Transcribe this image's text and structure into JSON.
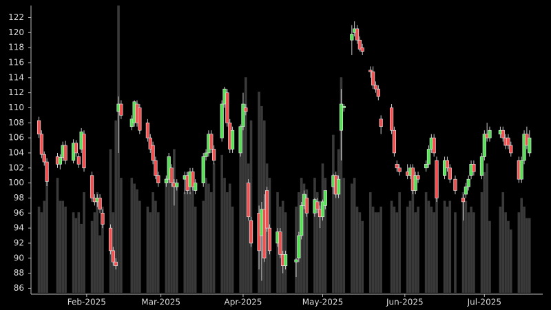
{
  "chart_data": {
    "type": "candlestick",
    "x": [
      14,
      15,
      16,
      17,
      21,
      22,
      23,
      24,
      27,
      28,
      29,
      30,
      31,
      34,
      35,
      36,
      37,
      38,
      41,
      42,
      43,
      44,
      45,
      49,
      50,
      51,
      52,
      55,
      56,
      57,
      58,
      59,
      62,
      63,
      64,
      65,
      66,
      69,
      70,
      71,
      72,
      73,
      76,
      77,
      78,
      79,
      80,
      83,
      84,
      85,
      86,
      87,
      90,
      91,
      92,
      93,
      94,
      97,
      98,
      99,
      100,
      101,
      104,
      105,
      106,
      107,
      111,
      112,
      113,
      114,
      115,
      118,
      119,
      120,
      121,
      122,
      125,
      126,
      127,
      128,
      129,
      132,
      133,
      134,
      135,
      136,
      139,
      140,
      141,
      142,
      143,
      147,
      148,
      149,
      150,
      153,
      154,
      155,
      156,
      157,
      160,
      161,
      162,
      163,
      164,
      167,
      168,
      169,
      171,
      174,
      175,
      176,
      177,
      178,
      181,
      182,
      183,
      184,
      188,
      189,
      190,
      191,
      192,
      195,
      196,
      197,
      198,
      199
    ],
    "open": [
      108.3,
      106.5,
      103.8,
      102.8,
      103.5,
      102.5,
      103.4,
      105,
      103,
      105.3,
      103.5,
      104.5,
      106.5,
      101,
      98,
      97.5,
      98,
      96,
      94,
      91,
      89.5,
      109.5,
      110.5,
      107.5,
      108,
      110.5,
      110,
      108,
      106,
      105,
      103,
      101,
      100,
      100.5,
      102,
      100,
      99.5,
      100.5,
      101,
      99.5,
      101.5,
      99,
      100,
      103.5,
      104,
      106.5,
      104.5,
      106,
      110.5,
      112,
      108,
      104.5,
      104,
      107.5,
      110,
      100,
      95,
      96,
      93,
      96.5,
      99,
      94,
      92,
      93.5,
      90.5,
      89,
      89.5,
      90,
      93,
      97,
      98,
      96,
      97.5,
      96.5,
      95.5,
      97,
      99.5,
      101,
      98.5,
      107,
      110,
      119,
      120,
      120.5,
      119,
      118,
      115,
      114.8,
      113,
      112.5,
      108.5,
      110,
      107,
      102.5,
      102,
      101.5,
      101,
      102,
      99,
      101,
      102,
      102.5,
      104.5,
      106,
      103,
      101,
      103,
      102,
      100.5,
      98,
      98.5,
      99.5,
      101,
      102.5,
      101,
      103.5,
      106.5,
      106,
      106.5,
      107,
      106,
      106,
      105,
      103,
      100.5,
      103,
      106.5,
      104
    ],
    "high": [
      108.8,
      107,
      104.2,
      103.3,
      104,
      103.8,
      105.5,
      105.6,
      105.8,
      105.7,
      104,
      107.3,
      107,
      101.5,
      98.5,
      98.5,
      98.5,
      96.5,
      94.5,
      91.5,
      90,
      111.5,
      111,
      109,
      111,
      111,
      110.5,
      108.5,
      106.5,
      105.5,
      103.5,
      101.5,
      101,
      104,
      102.5,
      100.5,
      100.5,
      101.5,
      101.5,
      102,
      102,
      100.5,
      104,
      104.5,
      107,
      107,
      105,
      111,
      112.8,
      112.5,
      108.5,
      107.5,
      107.8,
      112,
      110.5,
      100.5,
      95.5,
      97,
      97.5,
      98.5,
      99.5,
      94.5,
      94,
      94,
      91,
      91,
      90,
      93.5,
      97.5,
      99,
      98.5,
      98,
      98,
      97,
      97.8,
      99,
      101.2,
      101.5,
      101,
      112.5,
      110.5,
      121,
      121.5,
      121,
      119.5,
      118.5,
      115.5,
      115.5,
      113.5,
      113,
      109,
      110.5,
      107.5,
      103,
      102.5,
      102.5,
      102.5,
      102.5,
      101.5,
      101.5,
      103,
      105,
      106.5,
      106.5,
      103.5,
      103.5,
      103.5,
      102.5,
      101,
      98.5,
      100,
      101,
      103,
      103,
      104,
      107,
      108,
      107.5,
      107.5,
      107.5,
      106.5,
      106.5,
      105.5,
      103.5,
      103.5,
      107,
      107.5,
      107
    ],
    "low": [
      106,
      103.3,
      102.3,
      99.6,
      102,
      101.8,
      102.9,
      102.5,
      102.6,
      103.5,
      102,
      104,
      101.5,
      97.5,
      97,
      96.8,
      96,
      94,
      90.5,
      89,
      88.5,
      104,
      108.5,
      107,
      107.5,
      107.5,
      106.5,
      105.5,
      104,
      102.5,
      100.5,
      99.5,
      99.5,
      100,
      99.5,
      97,
      99,
      98.5,
      98.5,
      98.5,
      99,
      98.5,
      99.5,
      103,
      103.5,
      104,
      102.5,
      105.5,
      110,
      107.5,
      104,
      104,
      103.5,
      107,
      109,
      95,
      91.5,
      88.5,
      87,
      89.5,
      93.5,
      90.5,
      91.5,
      90,
      88,
      88.5,
      87.5,
      89.5,
      92.5,
      96.5,
      95.5,
      95.5,
      96,
      94,
      95,
      96.5,
      98.5,
      98,
      98,
      103,
      109.5,
      117,
      119.5,
      118.5,
      117.5,
      117,
      114,
      112.5,
      112,
      111,
      106.5,
      106.5,
      103.5,
      101.5,
      101,
      100.5,
      100.5,
      98.5,
      98.5,
      100,
      101.5,
      102,
      104,
      103.5,
      97.5,
      100.5,
      101.5,
      100,
      98.5,
      95,
      98,
      99,
      100.5,
      101,
      100.5,
      103,
      105.5,
      105.5,
      106,
      105.5,
      104.5,
      104.5,
      103.5,
      100,
      100,
      102.5,
      104.5,
      103.5
    ],
    "close": [
      106.5,
      103.8,
      102.8,
      100.2,
      102.5,
      103.4,
      105,
      103,
      105.3,
      104,
      102.5,
      106.8,
      102,
      98,
      97.5,
      98,
      96.5,
      94.5,
      91,
      89.5,
      89,
      110.5,
      109,
      108.5,
      110.8,
      108,
      107,
      106,
      104.5,
      103,
      101,
      100,
      100.5,
      103.5,
      100,
      99.5,
      100,
      101,
      99,
      101.5,
      99.5,
      100,
      103.5,
      104,
      106.5,
      104.5,
      103,
      110.5,
      112.5,
      108,
      104.5,
      107,
      107.5,
      110.5,
      109.5,
      95.5,
      92,
      91,
      96.5,
      90,
      94,
      91,
      93.5,
      90.5,
      89,
      90.5,
      89.8,
      93,
      97,
      98.5,
      96,
      97.8,
      96.5,
      95.5,
      97.5,
      99,
      101,
      98.5,
      100.5,
      110.5,
      110.2,
      119.8,
      120.5,
      119,
      117.8,
      117.5,
      114.8,
      113,
      112.5,
      111.5,
      107.5,
      107,
      104,
      102,
      101.5,
      101,
      102,
      99,
      101,
      100.5,
      102.5,
      104.5,
      106,
      104,
      98,
      103,
      102,
      100.5,
      99,
      97.5,
      99.5,
      100.5,
      102.5,
      101.5,
      103.5,
      106.5,
      106,
      107,
      107,
      106,
      105,
      105,
      104,
      100.5,
      103,
      106.5,
      105,
      106
    ],
    "volume": [
      30,
      28,
      32,
      45,
      40,
      32,
      32,
      30,
      28,
      26,
      28,
      24,
      35,
      25,
      28,
      35,
      20,
      30,
      50,
      28,
      60,
      100,
      40,
      40,
      38,
      36,
      32,
      30,
      28,
      35,
      32,
      28,
      40,
      45,
      38,
      50,
      38,
      35,
      42,
      35,
      38,
      30,
      32,
      40,
      38,
      35,
      45,
      48,
      40,
      35,
      38,
      30,
      55,
      65,
      75,
      45,
      60,
      70,
      65,
      60,
      45,
      40,
      35,
      30,
      32,
      28,
      30,
      35,
      40,
      38,
      36,
      40,
      35,
      32,
      45,
      40,
      55,
      40,
      50,
      75,
      40,
      38,
      40,
      30,
      28,
      25,
      35,
      30,
      28,
      28,
      30,
      32,
      30,
      28,
      35,
      30,
      32,
      38,
      28,
      30,
      35,
      32,
      30,
      28,
      35,
      32,
      30,
      32,
      28,
      35,
      32,
      28,
      30,
      28,
      35,
      42,
      45,
      25,
      30,
      35,
      28,
      25,
      22,
      28,
      33,
      30,
      26,
      26
    ],
    "xlim": [
      11,
      204
    ],
    "xticks": [
      {
        "value": 32,
        "label": "Feb-2025"
      },
      {
        "value": 60,
        "label": "Mar-2025"
      },
      {
        "value": 91,
        "label": "Apr-2025"
      },
      {
        "value": 121,
        "label": "May-2025"
      },
      {
        "value": 152,
        "label": "Jun-2025"
      },
      {
        "value": 182,
        "label": "Jul-2025"
      }
    ],
    "ylim": [
      85.4,
      123.6
    ],
    "yticks": [
      86,
      88,
      90,
      92,
      94,
      96,
      98,
      100,
      102,
      104,
      106,
      108,
      110,
      112,
      114,
      116,
      118,
      120,
      122
    ],
    "up_color": "#55e055",
    "down_color": "#f05050",
    "volume_color": "#3a3a3a",
    "wick_color": "#cccccc"
  }
}
